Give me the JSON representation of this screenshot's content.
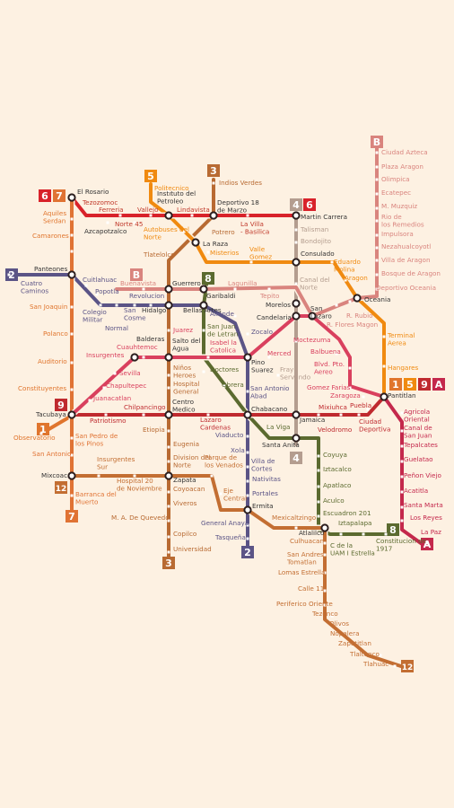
{
  "lines": [
    {
      "id": "1",
      "color": "#e0752d"
    },
    {
      "id": "2",
      "color": "#5b5486"
    },
    {
      "id": "3",
      "color": "#b86a32"
    },
    {
      "id": "4",
      "color": "#b49d8f"
    },
    {
      "id": "5",
      "color": "#f08a10"
    },
    {
      "id": "6",
      "color": "#d8222a"
    },
    {
      "id": "7",
      "color": "#e07334"
    },
    {
      "id": "8",
      "color": "#5b6a2f"
    },
    {
      "id": "9",
      "color": "#bf2a2f"
    },
    {
      "id": "A",
      "color": "#c4284c"
    },
    {
      "id": "B",
      "color": "#d9847e"
    },
    {
      "id": "12",
      "color": "#c36e32"
    },
    {
      "id": "M",
      "color": "#d9405e"
    }
  ],
  "stations": {
    "el_rosario": "El Rosario",
    "tezozomoc": "Tezozomoc",
    "azcapotzalco": "Azcapotzalco",
    "ferreria": "Ferreria",
    "norte45": "Norte 45",
    "vallejo": "Vallejo",
    "instituto_petroleo": "Instituto del Petroleo",
    "lindavista": "Lindavista",
    "deportivo_18": "Deportivo 18 de Marzo",
    "villa_basilica": "La Villa - Basilica",
    "martin_carrera": "Martin Carrera",
    "politecnico": "Politecnico",
    "indios_verdes": "Indios Verdes",
    "autobuses_norte": "Autobuses del Norte",
    "potrero": "Potrero",
    "la_raza": "La Raza",
    "misterios": "Misterios",
    "tlatelolco": "Tlatelolco",
    "valle_gomez": "Valle Gomez",
    "consulado": "Consulado",
    "talisman": "Talisman",
    "bondojito": "Bondojito",
    "canal_norte": "Canal del Norte",
    "eduardo_molina": "Eduardo Molina",
    "aragon": "Aragon",
    "oceania": "Oceania",
    "terminal_aerea": "Terminal Aerea",
    "hangares": "Hangares",
    "pantitlan": "Pantitlan",
    "aquiles_serdan": "Aquiles Serdan",
    "camarones": "Camarones",
    "refineria": "Refineria",
    "panteones": "Panteones",
    "cuatro_caminos": "Cuatro Caminos",
    "cuitlahuac": "Cuitlahuac",
    "popotla": "Popotla",
    "colegio_militar": "Colegio Militar",
    "normal": "Normal",
    "san_cosme": "San Cosme",
    "revolucion": "Revolucion",
    "buenavista": "Buenavista",
    "guerrero": "Guerrero",
    "garibaldi": "Garibaldi",
    "lagunilla": "Lagunilla",
    "tepito": "Tepito",
    "morelos": "Morelos",
    "san_lazaro": "San Lazaro",
    "r_flores_magon": "R. Flores Magon",
    "r_rubio": "R. Rubio",
    "hidalgo": "Hidalgo",
    "bellas_artes": "Bellas Artes",
    "allende": "Allende",
    "zocalo": "Zocalo",
    "candelaria": "Candelaria",
    "san_joaquin": "San Joaquin",
    "polanco": "Polanco",
    "auditorio": "Auditorio",
    "constituyentes": "Constituyentes",
    "tacubaya": "Tacubaya",
    "observatorio": "Observatorio",
    "juarez": "Juarez",
    "san_juan_letran": "San Juan de Letran",
    "balderas": "Balderas",
    "cuauhtemoc": "Cuauhtemoc",
    "insurgentes": "Insurgentes",
    "sevilla": "Sevilla",
    "chapultepec": "Chapultepec",
    "juanacatlan": "Juanacatlan",
    "salto_agua": "Salto del Agua",
    "isabel_catolica": "Isabel la Catolica",
    "pino_suarez": "Pino Suarez",
    "merced": "Merced",
    "moctezuma": "Moctezuma",
    "balbuena": "Balbuena",
    "blvd_puerto_aereo": "Blvd. Pto. Aereo",
    "gomez_farias": "Gomez Farias",
    "zaragoza": "Zaragoza",
    "doctores": "Doctores",
    "obrera": "Obrera",
    "fray_servando": "Fray Servando",
    "san_antonio_abad": "San Antonio Abad",
    "ninos_heroes": "Niños Heroes",
    "hospital_general": "Hospital General",
    "centro_medico": "Centro Medico",
    "chilpancingo": "Chilpancingo",
    "patriotismo": "Patriotismo",
    "lazaro_cardenas": "Lazaro Cardenas",
    "chabacano": "Chabacano",
    "la_viga": "La Viga",
    "santa_anita": "Santa Anita",
    "jamaica": "Jamaica",
    "mixiuhca": "Mixiuhca",
    "velodromo": "Velodromo",
    "ciudad_deportiva": "Ciudad Deportiva",
    "puebla": "Puebla",
    "etiopia": "Etiopia",
    "eugenia": "Eugenia",
    "division_norte": "Division del Norte",
    "zapata": "Zapata",
    "coyoacan": "Coyoacan",
    "viveros": "Viveros",
    "ma_quevedo": "M. A. De Quevedo",
    "copilco": "Copilco",
    "universidad": "Universidad",
    "viaducto": "Viaducto",
    "xola": "Xola",
    "villa_cortes": "Villa de Cortes",
    "nativitas": "Nativitas",
    "portales": "Portales",
    "ermita": "Ermita",
    "general_anaya": "General Anaya",
    "tasquena": "Tasqueña",
    "parque_venados": "Parque de los Venados",
    "eje_central": "Eje Central",
    "mexicaltzingo": "Mexicaltzingo",
    "atlalilco": "Atlalilco",
    "culhuacan": "Culhuacan",
    "san_andres_tomatlan": "San Andres Tomatlan",
    "lomas_estrella": "Lomas Estrella",
    "calle_11": "Calle 11",
    "periferico_oriente": "Periferico Oriente",
    "tezonco": "Tezonco",
    "olivos": "Olivos",
    "nopalera": "Nopalera",
    "zapotitlan": "Zapotitlan",
    "tlaltenco": "Tlaltenco",
    "tlahuac": "Tlahuac",
    "coyuya": "Coyuya",
    "iztacalco": "Iztacalco",
    "apatlaco": "Apatlaco",
    "aculco": "Aculco",
    "escuadron_201": "Escuadron 201",
    "iztapalapa": "Iztapalapa",
    "cerro_estrella": "C de la UAM I Estrella",
    "constitucion": "Constitucion de 1917",
    "tacubaya_s": "Tacubaya",
    "mixcoac": "Mixcoac",
    "barranca_muerto": "Barranca del Muerto",
    "san_pedro_pinos": "San Pedro de los Pinos",
    "san_antonio": "San Antonio",
    "insurgentes_sur": "Insurgentes Sur",
    "hospital_20": "Hospital 20 de Noviembre",
    "ciudad_azteca": "Ciudad Azteca",
    "plaza_aragon": "Plaza Aragon",
    "olimpica": "Olimpica",
    "ecatepec": "Ecatepec",
    "m_muzquiz": "M. Muzquiz",
    "rio_remedios": "Rio de los Remedios",
    "impulsora": "Impulsora",
    "nezahualcoyotl": "Nezahualcoyotl",
    "villa_aragon": "Villa de Aragon",
    "bosque_aragon": "Bosque de Aragon",
    "deportivo_oceania": "Deportivo Oceania",
    "agricola_oriental": "Agricola Oriental",
    "canal_san_juan": "Canal de San Juan",
    "tepalcates": "Tepalcates",
    "guelatao": "Guelatao",
    "penon_viejo": "Peñon Viejo",
    "acatitla": "Acatitla",
    "santa_marta": "Santa Marta",
    "los_reyes": "Los Reyes",
    "la_paz": "La Paz"
  }
}
